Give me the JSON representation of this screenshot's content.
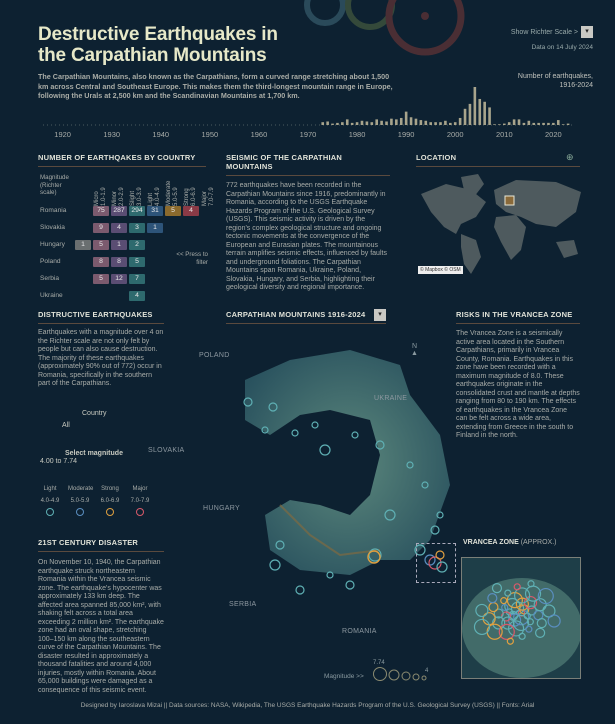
{
  "header": {
    "title_line1": "Destructive Earthquakes in",
    "title_line2": "the Carpathian Mountains",
    "intro": "The Carpathian Mountains, also known as the Carpathians, form a curved range stretching about 1,500 km across Central and Southeast Europe. This makes them the third-longest mountain range in Europe, following the Urals at 2,500 km and the Scandinavian Mountains at 1,700 km.",
    "richter_toggle": "Show Richter Scale >",
    "data_on": "Data on 14 July 2024",
    "histogram_title": "Number of earthquakes, 1916-2024"
  },
  "chart_data": {
    "type": "bar",
    "title": "Number of earthquakes, 1916-2024",
    "xlabel": "",
    "ylabel": "",
    "x_ticks": [
      "1920",
      "1930",
      "1940",
      "1950",
      "1960",
      "1970",
      "1980",
      "1990",
      "2000",
      "2010",
      "2020"
    ],
    "x": [
      1973,
      1974,
      1975,
      1976,
      1977,
      1978,
      1979,
      1980,
      1981,
      1982,
      1983,
      1984,
      1985,
      1986,
      1987,
      1988,
      1989,
      1990,
      1991,
      1992,
      1993,
      1994,
      1995,
      1996,
      1997,
      1998,
      1999,
      2000,
      2001,
      2002,
      2003,
      2004,
      2005,
      2006,
      2007,
      2008,
      2009,
      2010,
      2011,
      2012,
      2013,
      2014,
      2015,
      2016,
      2017,
      2018,
      2019,
      2020,
      2021,
      2022,
      2023
    ],
    "values": [
      4,
      5,
      2,
      3,
      4,
      8,
      3,
      4,
      6,
      5,
      4,
      8,
      6,
      5,
      9,
      8,
      10,
      19,
      11,
      9,
      7,
      6,
      4,
      4,
      4,
      6,
      3,
      4,
      10,
      23,
      30,
      54,
      37,
      33,
      25,
      1,
      1,
      2,
      4,
      8,
      8,
      3,
      6,
      3,
      3,
      3,
      3,
      3,
      7,
      1,
      2
    ]
  },
  "by_country": {
    "title": "NUMBER OF EARTHQAKES BY COUNTRY",
    "magnitude_label": "Magnitude (Richter scale)",
    "columns": [
      {
        "name": "Micro",
        "range": "1.0-1.9",
        "color": "#6a6f70"
      },
      {
        "name": "Minor",
        "range": "2.0-2.9",
        "color": "#7b5a6e"
      },
      {
        "name": "Slight",
        "range": "3.0-3.9",
        "color": "#5a4d73"
      },
      {
        "name": "Light",
        "range": "4.0-4.9",
        "color": "#2e6a6e"
      },
      {
        "name": "Moderate",
        "range": "5.0-5.9",
        "color": "#2d5479"
      },
      {
        "name": "Strong",
        "range": "6.0-6.9",
        "color": "#8b6a2d"
      },
      {
        "name": "Major",
        "range": "7.0-7.9",
        "color": "#8a3a46"
      }
    ],
    "rows": [
      {
        "country": "Romania",
        "values": [
          "",
          "75",
          "287",
          "294",
          "31",
          "5",
          "4"
        ]
      },
      {
        "country": "Slovakia",
        "values": [
          "",
          "9",
          "4",
          "3",
          "1",
          "",
          ""
        ]
      },
      {
        "country": "Hungary",
        "values": [
          "1",
          "5",
          "1",
          "2",
          "",
          "",
          ""
        ]
      },
      {
        "country": "Poland",
        "values": [
          "",
          "8",
          "8",
          "5",
          "",
          "",
          ""
        ]
      },
      {
        "country": "Serbia",
        "values": [
          "",
          "5",
          "12",
          "7",
          "",
          "",
          ""
        ]
      },
      {
        "country": "Ukraine",
        "values": [
          "",
          "",
          "",
          "4",
          "",
          "",
          ""
        ]
      }
    ],
    "filter_hint": "<< Press to filter"
  },
  "seismic": {
    "title": "SEISMIC OF THE CARPATHIAN MOUNTAINS",
    "text": "772 earthquakes have been recorded in the Carpathian Mountains since 1916, predominantly in Romania, according to the USGS Earthquake Hazards Program of the U.S. Geological Survey (USGS). This seismic activity is driven by the region's complex geological structure and ongoing tectonic movements at the convergence of the European and Eurasian plates. The mountainous terrain amplifies seismic effects, influenced by faults and underground foliations. The Carpathian Mountains span Romania, Ukraine, Poland, Slovakia, Hungary, and Serbia, highlighting their geological diversity and regional importance."
  },
  "location": {
    "title": "LOCATION",
    "attribution": "© Mapbox © OSM"
  },
  "destructive": {
    "title": "DISTRUCTIVE EARTHQUAKES",
    "text": "Earthquakes with a magnitude over 4 on the Richter scale are not only felt by people but can also cause destruction. The majority of these earthquakes (approximately 90% out of 772) occur in Romania, specifically in the southern part of the Carpathians.",
    "country_label": "Country",
    "country_value": "All",
    "magnitude_label": "Select magnitude",
    "magnitude_value": "4.00 to 7.74",
    "legend": [
      {
        "name": "Light",
        "range": "4.0-4.9",
        "color": "#5fb0b4"
      },
      {
        "name": "Moderate",
        "range": "5.0-5.9",
        "color": "#5a8ec0"
      },
      {
        "name": "Strong",
        "range": "6.0-6.9",
        "color": "#e0a040"
      },
      {
        "name": "Major",
        "range": "7.0-7.9",
        "color": "#d85a6a"
      }
    ]
  },
  "disaster": {
    "title": "21ST CENTURY DISASTER",
    "text": "On November 10, 1940, the Carpathian earthquake struck northeastern Romania within the Vrancea seismic zone. The earthquake's hypocenter was approximately 133 km deep. The affected area spanned 85,000 km², with shaking felt across a total area exceeding 2 million km². The earthquake zone had an oval shape, stretching 100–150 km along the southeastern curve of the Carpathian Mountains. The disaster resulted in approximately a thousand fatalities and around 4,000 injuries, mostly within Romania. About 65,000 buildings were damaged as a consequence of this seismic event."
  },
  "map": {
    "title": "CARPATHIAN MOUNTAINS  1916-2024",
    "countries": [
      "POLAND",
      "UKRAINE",
      "SLOVAKIA",
      "HUNGARY",
      "SERBIA",
      "ROMANIA"
    ],
    "north": "N",
    "size_legend_label": "Magnitude >>",
    "size_max": "7.74",
    "size_min": "4"
  },
  "vrancea": {
    "title": "RISKS IN THE VRANCEA ZONE",
    "text": "The Vrancea Zone is a seismically active area located in the Southern Carpathians, primarily in Vrancea County, Romania. Earthquakes in this zone have been recorded with a maximum magnitude of 8.0. These earthquakes originate in the consolidated crust and mantle at depths ranging from 80 to 190 km. The effects of earthquakes in the Vrancea Zone can be felt across a wide area, extending from Greece in the south to Finland in the north.",
    "inset_title": "VRANCEA ZONE",
    "inset_suffix": "(APPROX.)"
  },
  "footer": "Designed by Iaroslava Mizai || Data sources: NASA, Wikipedia, The USGS Earthquake Hazards Program of the U.S. Geological Survey (USGS)  || Fonts: Arial"
}
